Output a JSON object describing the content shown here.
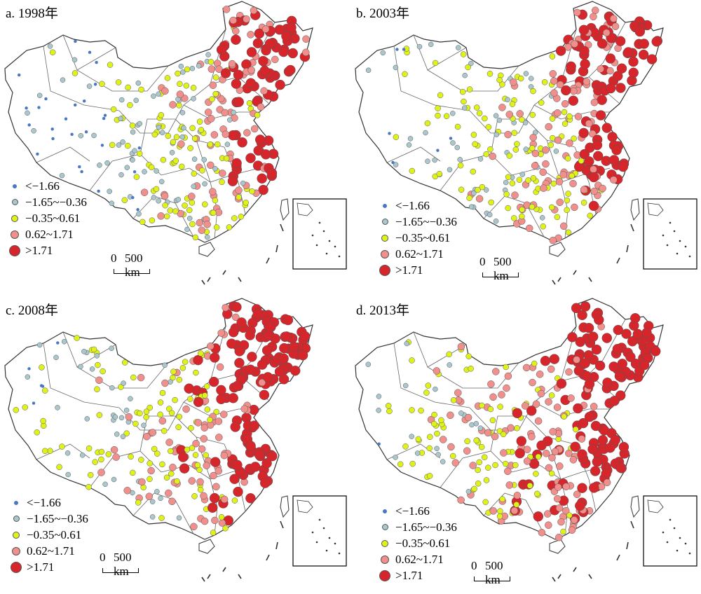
{
  "panels": [
    {
      "key": "a",
      "title": "a. 1998年",
      "seed": 11,
      "bias": -0.15
    },
    {
      "key": "b",
      "title": "b. 2003年",
      "seed": 23,
      "bias": 0.05
    },
    {
      "key": "c",
      "title": "c. 2008年",
      "seed": 37,
      "bias": 0.2
    },
    {
      "key": "d",
      "title": "d. 2013年",
      "seed": 51,
      "bias": 0.35
    }
  ],
  "legend": [
    {
      "label": "<−1.66",
      "color": "#4a78c0",
      "size": 4
    },
    {
      "label": "−1.65~−0.36",
      "color": "#a9c7cc",
      "size": 7
    },
    {
      "label": "−0.35~0.61",
      "color": "#dff21a",
      "size": 8
    },
    {
      "label": "0.62~1.71",
      "color": "#f08f8b",
      "size": 10
    },
    {
      "label": ">1.71",
      "color": "#d7262b",
      "size": 14
    }
  ],
  "scale": {
    "zero": "0",
    "label": "500 km"
  }
}
